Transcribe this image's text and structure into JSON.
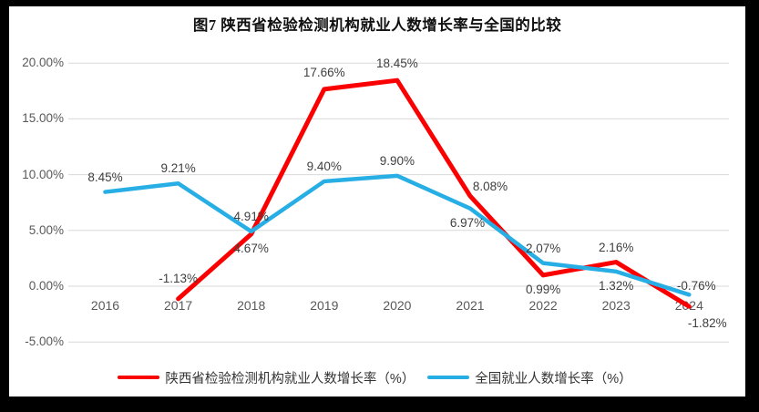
{
  "title": "图7 陕西省检验检测机构就业人数增长率与全国的比较",
  "chart_data": {
    "type": "line",
    "title": "图7 陕西省检验检测机构就业人数增长率与全国的比较",
    "categories": [
      "2016",
      "2017",
      "2018",
      "2019",
      "2020",
      "2021",
      "2022",
      "2023",
      "2024"
    ],
    "ylim": [
      -5,
      20
    ],
    "grid": true,
    "legend_position": "bottom",
    "grid_color": "#d9d9d9",
    "axis_text_color": "#595959",
    "label_text_color": "#3f3f3f",
    "y_ticks": [
      {
        "label": "20.00%",
        "value": 20
      },
      {
        "label": "15.00%",
        "value": 15
      },
      {
        "label": "10.00%",
        "value": 10
      },
      {
        "label": "5.00%",
        "value": 5
      },
      {
        "label": "0.00%",
        "value": 0
      },
      {
        "label": "-5.00%",
        "value": -5
      }
    ],
    "series": [
      {
        "name": "陕西省检验检测机构就业人数增长率（%）",
        "color": "#fb0000",
        "width": 5,
        "points": [
          {
            "year": "2017",
            "value": -1.13,
            "label": "-1.13%",
            "pos": "above",
            "dy": -30
          },
          {
            "year": "2018",
            "value": 4.67,
            "label": "4.67%",
            "pos": "below"
          },
          {
            "year": "2019",
            "value": 17.66,
            "label": "17.66%",
            "pos": "above",
            "dy": -26
          },
          {
            "year": "2020",
            "value": 18.45,
            "label": "18.45%",
            "pos": "above",
            "dy": -26
          },
          {
            "year": "2021",
            "value": 8.08,
            "label": "8.08%",
            "pos": "above",
            "dx": 22,
            "dy": -18
          },
          {
            "year": "2022",
            "value": 0.99,
            "label": "0.99%",
            "pos": "below"
          },
          {
            "year": "2023",
            "value": 2.16,
            "label": "2.16%",
            "pos": "above"
          },
          {
            "year": "2024",
            "value": -1.82,
            "label": "-1.82%",
            "pos": "below",
            "dx": 20,
            "dy": 11
          }
        ]
      },
      {
        "name": "全国就业人数增长率（%）",
        "color": "#27aee4",
        "width": 4.5,
        "points": [
          {
            "year": "2016",
            "value": 8.45,
            "label": "8.45%",
            "pos": "above"
          },
          {
            "year": "2017",
            "value": 9.21,
            "label": "9.21%",
            "pos": "above"
          },
          {
            "year": "2018",
            "value": 4.91,
            "label": "4.91%",
            "pos": "above"
          },
          {
            "year": "2019",
            "value": 9.4,
            "label": "9.40%",
            "pos": "above"
          },
          {
            "year": "2020",
            "value": 9.9,
            "label": "9.90%",
            "pos": "above"
          },
          {
            "year": "2021",
            "value": 6.97,
            "label": "6.97%",
            "pos": "below",
            "dx": -3
          },
          {
            "year": "2022",
            "value": 2.07,
            "label": "2.07%",
            "pos": "above"
          },
          {
            "year": "2023",
            "value": 1.32,
            "label": "1.32%",
            "pos": "below"
          },
          {
            "year": "2024",
            "value": -0.76,
            "label": "-0.76%",
            "pos": "above",
            "dx": 8,
            "dy": -17
          }
        ]
      }
    ]
  }
}
